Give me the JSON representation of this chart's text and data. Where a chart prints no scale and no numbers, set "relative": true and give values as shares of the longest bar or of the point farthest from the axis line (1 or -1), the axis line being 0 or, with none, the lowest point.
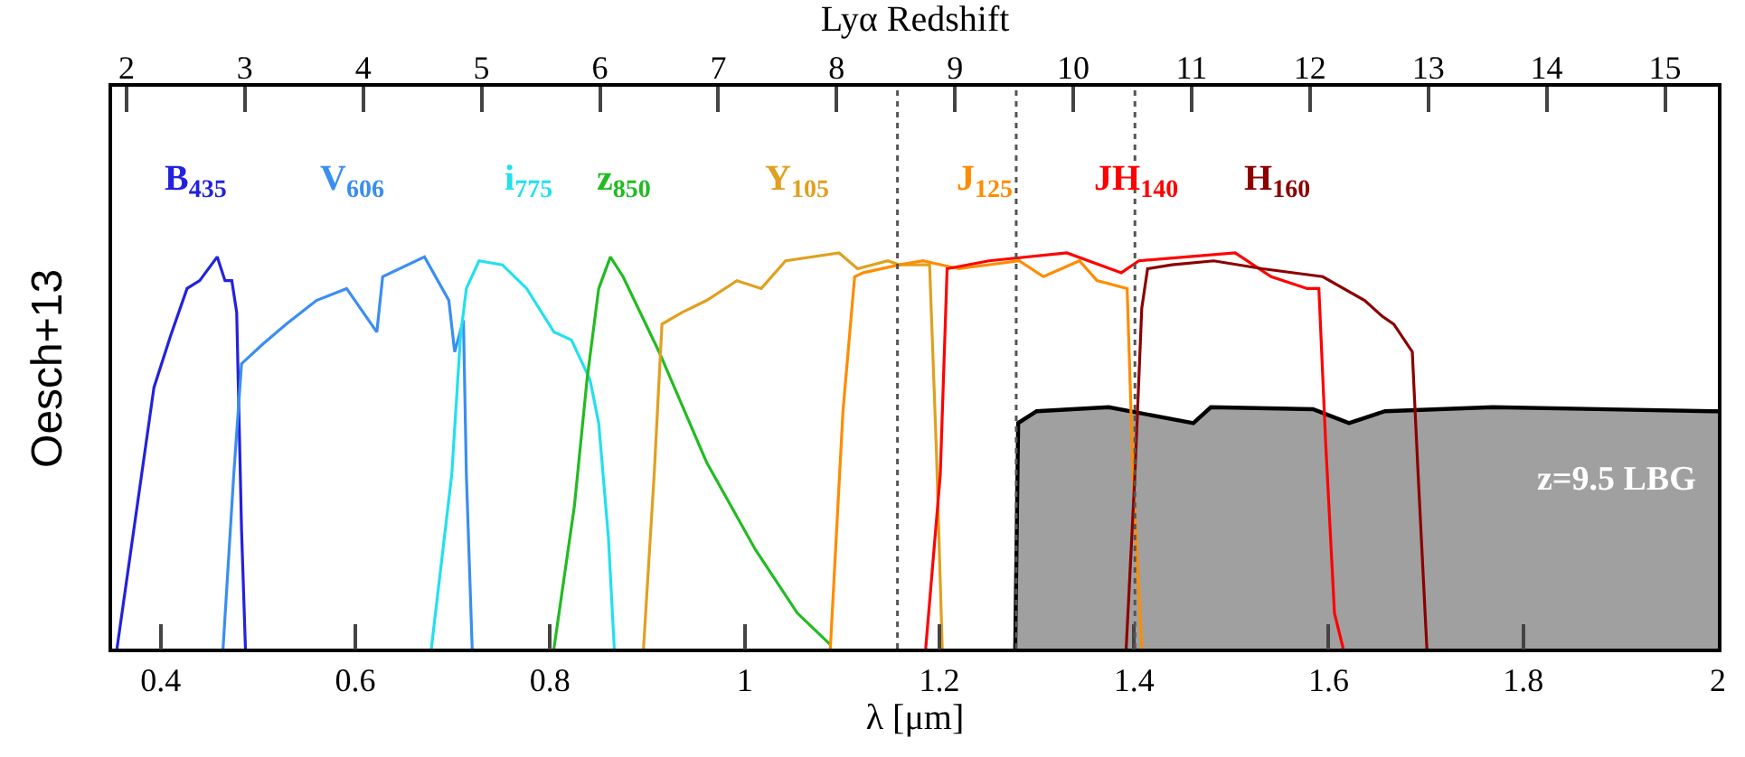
{
  "chart_data": {
    "type": "line",
    "relative": true,
    "xlabel": "λ [μm]",
    "x2label": "Lyα Redshift",
    "xlim": [
      0.35,
      2.0
    ],
    "xticks": [
      0.4,
      0.6,
      0.8,
      1,
      1.2,
      1.4,
      1.6,
      1.8,
      2
    ],
    "x2lim": [
      1.878,
      15.447
    ],
    "x2ticks": [
      2,
      3,
      4,
      5,
      6,
      7,
      8,
      9,
      10,
      11,
      12,
      13,
      14,
      15
    ],
    "annotations": [
      "Oesch+13"
    ],
    "ref_lines": [
      {
        "axis": "x",
        "value": 1.157,
        "label": null,
        "color": "#555555",
        "line_style": "dotted"
      },
      {
        "axis": "x",
        "value": 1.279,
        "label": null,
        "color": "#555555",
        "line_style": "dotted"
      },
      {
        "axis": "x",
        "value": 1.401,
        "label": null,
        "color": "#555555",
        "line_style": "dotted"
      }
    ],
    "series": [
      {
        "name": "B$_{435}$",
        "color": "#2222dd",
        "x": [
          0.355,
          0.393,
          0.41,
          0.427,
          0.44,
          0.458,
          0.466,
          0.473,
          0.478,
          0.483,
          0.487
        ],
        "values": [
          0,
          0.66,
          0.79,
          0.91,
          0.93,
          0.99,
          0.93,
          0.93,
          0.85,
          0.3,
          0
        ]
      },
      {
        "name": "V$_{606}$",
        "color": "#3a8ef0",
        "x": [
          0.464,
          0.475,
          0.483,
          0.505,
          0.529,
          0.56,
          0.591,
          0.622,
          0.628,
          0.671,
          0.696,
          0.702,
          0.711,
          0.714,
          0.72
        ],
        "values": [
          0,
          0.44,
          0.72,
          0.77,
          0.82,
          0.88,
          0.91,
          0.8,
          0.94,
          0.99,
          0.88,
          0.75,
          0.83,
          0.44,
          0
        ]
      },
      {
        "name": "i$_{775}$",
        "color": "#22e0ee",
        "x": [
          0.678,
          0.699,
          0.708,
          0.714,
          0.727,
          0.751,
          0.776,
          0.804,
          0.822,
          0.841,
          0.85,
          0.86,
          0.866
        ],
        "values": [
          0,
          0.44,
          0.79,
          0.91,
          0.98,
          0.97,
          0.91,
          0.8,
          0.78,
          0.68,
          0.57,
          0.28,
          0
        ]
      },
      {
        "name": "z$_{850}$",
        "color": "#22bb22",
        "x": [
          0.804,
          0.825,
          0.838,
          0.85,
          0.862,
          0.875,
          0.912,
          0.961,
          1.011,
          1.054,
          1.088
        ],
        "values": [
          0,
          0.36,
          0.68,
          0.91,
          0.99,
          0.94,
          0.75,
          0.47,
          0.25,
          0.09,
          0.01
        ]
      },
      {
        "name": "Y$_{105}$",
        "color": "#e0a020",
        "x": [
          0.896,
          0.907,
          0.915,
          0.936,
          0.961,
          0.992,
          1.017,
          1.042,
          1.097,
          1.116,
          1.147,
          1.159,
          1.19,
          1.197,
          1.203
        ],
        "values": [
          0,
          0.44,
          0.82,
          0.85,
          0.88,
          0.93,
          0.91,
          0.98,
          1.0,
          0.96,
          0.98,
          0.97,
          0.97,
          0.5,
          0
        ]
      },
      {
        "name": "J$_{125}$",
        "color": "#ff8c00",
        "x": [
          1.088,
          1.101,
          1.113,
          1.122,
          1.159,
          1.183,
          1.22,
          1.282,
          1.307,
          1.344,
          1.362,
          1.393,
          1.399,
          1.408
        ],
        "values": [
          0,
          0.6,
          0.94,
          0.95,
          0.97,
          0.98,
          0.96,
          0.98,
          0.94,
          0.98,
          0.93,
          0.91,
          0.44,
          0
        ]
      },
      {
        "name": "JH$_{140}$",
        "color": "#ff0000",
        "x": [
          1.186,
          1.201,
          1.208,
          1.251,
          1.331,
          1.387,
          1.405,
          1.504,
          1.541,
          1.578,
          1.59,
          1.597,
          1.606,
          1.615
        ],
        "values": [
          0,
          0.44,
          0.96,
          0.98,
          1.0,
          0.95,
          0.98,
          1.0,
          0.94,
          0.91,
          0.91,
          0.52,
          0.09,
          0
        ]
      },
      {
        "name": "H$_{160}$",
        "color": "#8b0000",
        "x": [
          1.392,
          1.401,
          1.408,
          1.414,
          1.439,
          1.482,
          1.532,
          1.594,
          1.637,
          1.655,
          1.667,
          1.686,
          1.692,
          1.701
        ],
        "values": [
          0,
          0.44,
          0.86,
          0.96,
          0.97,
          0.98,
          0.96,
          0.94,
          0.88,
          0.84,
          0.82,
          0.75,
          0.44,
          0
        ]
      },
      {
        "name": "z=9.5 LBG",
        "type": "area",
        "color": "#a0a0a0",
        "x": [
          1.278,
          1.281,
          1.3,
          1.374,
          1.461,
          1.479,
          1.584,
          1.621,
          1.658,
          1.769,
          1.994,
          2.0
        ],
        "values": [
          0,
          0.57,
          0.6,
          0.61,
          0.57,
          0.61,
          0.605,
          0.57,
          0.6,
          0.61,
          0.6,
          0.6
        ]
      }
    ]
  }
}
